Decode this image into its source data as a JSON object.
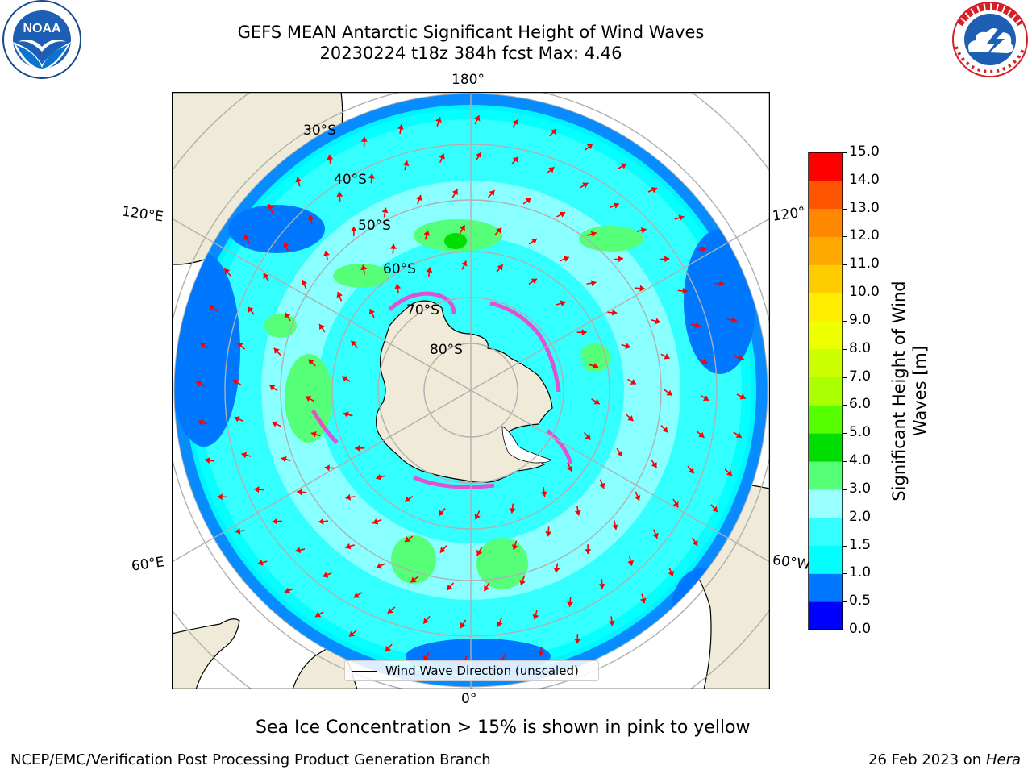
{
  "title_line1": "GEFS MEAN Antarctic Significant Height of Wind Waves",
  "title_line2": "20230224 t18z 384h fcst   Max: 4.46",
  "logos": {
    "left": {
      "name": "noaa-logo",
      "text": "NOAA",
      "ring_text": "NATIONAL OCEANIC AND ATMOSPHERIC ADMINISTRATION · U.S. DEPARTMENT OF COMMERCE"
    },
    "right": {
      "name": "nws-logo",
      "ring_text": "NATIONAL WEATHER SERVICE"
    }
  },
  "map": {
    "projection": "south-polar-stereographic",
    "longitude_labels": {
      "top": "180°",
      "bottom": "0°",
      "left_upper": "120°E",
      "left_lower": "60°E",
      "right_upper": "120°",
      "right_lower": "60°W"
    },
    "latitude_labels": [
      "30°S",
      "40°S",
      "50°S",
      "60°S",
      "70°S",
      "80°S"
    ],
    "legend_text": "Wind Wave Direction (unscaled)",
    "colors": {
      "land": "#efebd8",
      "coast": "#000000",
      "grid": "#b0b0b0",
      "arrow": "#ff0000",
      "sea_ice": "#ff33cc"
    }
  },
  "colorbar": {
    "label": "Significant Height of Wind Waves [m]",
    "ticks": [
      "0.0",
      "0.5",
      "1.0",
      "1.5",
      "2.0",
      "3.0",
      "4.0",
      "5.0",
      "6.0",
      "7.0",
      "8.0",
      "9.0",
      "10.0",
      "11.0",
      "12.0",
      "13.0",
      "14.0",
      "15.0"
    ],
    "colors": [
      "#0000ff",
      "#0077ff",
      "#00ffff",
      "#33ffff",
      "#99ffff",
      "#55ff77",
      "#00dd00",
      "#55ff00",
      "#aaff00",
      "#ccff00",
      "#eeff00",
      "#ffee00",
      "#ffcc00",
      "#ffaa00",
      "#ff8800",
      "#ff5500",
      "#ff0000"
    ]
  },
  "subtitle": "Sea Ice Concentration > 15% is shown in pink to yellow",
  "footer_left": "NCEP/EMC/Verification Post Processing Product Generation Branch",
  "footer_right_prefix": "26 Feb 2023 on",
  "footer_right_host": "Hera"
}
